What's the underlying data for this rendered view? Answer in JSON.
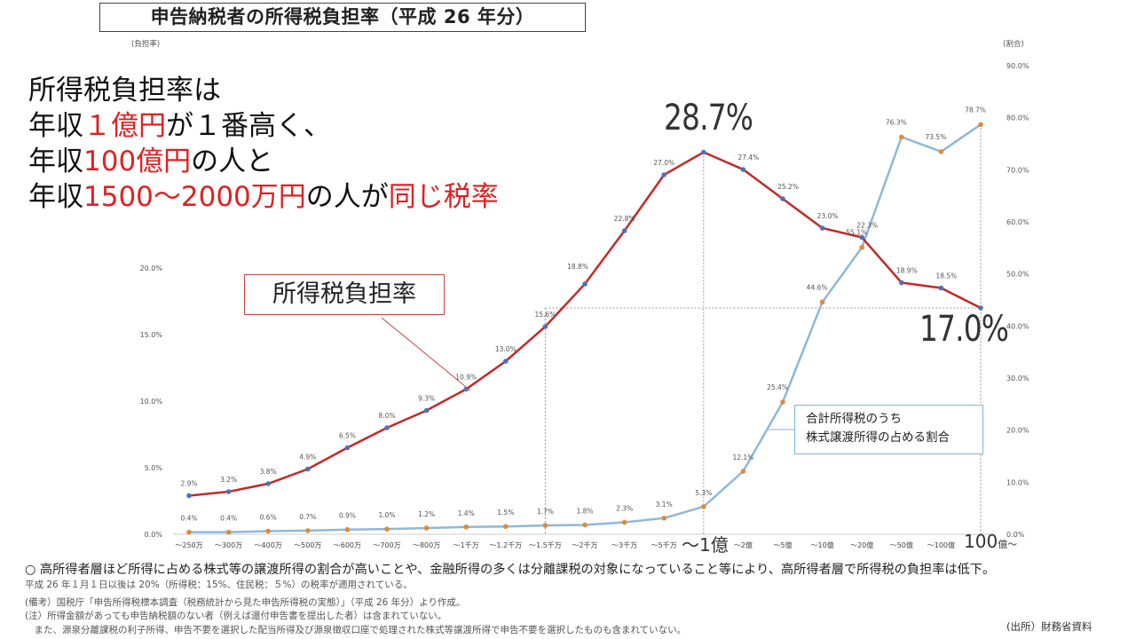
{
  "title": "申告納税者の所得税負担率（平成 26 年分）",
  "headline": {
    "line1": "所得税負担率は",
    "line2_a": "年収",
    "line2_b": "１億円",
    "line2_c": "が１番高く、",
    "line3_a": "年収",
    "line3_b": "100億円",
    "line3_c": "の人と",
    "line4_a": "年収",
    "line4_b": "1500～2000万円",
    "line4_c": "の人が",
    "line4_d": "同じ税率"
  },
  "accent_colors": {
    "headline_red": "#e02020",
    "burden_line": "#c62828",
    "share_line": "#8fb8d8",
    "share_marker": "#e08a3a",
    "burden_marker": "#4a74b8"
  },
  "callouts": {
    "burden": "所得税負担率",
    "share_line1": "合計所得税のうち",
    "share_line2": "株式譲渡所得の占める割合",
    "peak": "28.7%",
    "end": "17.0%",
    "x_1oku": "～1億",
    "x_100oku": "100",
    "x_100oku_suffix": "億～"
  },
  "notes": {
    "main": "○ 高所得者層ほど所得に占める株式等の譲渡所得の割合が高いことや、金融所得の多くは分離課税の対象になっていること等により、高所得者層で所得税の負担率は低下。",
    "sub1": "平成 26 年１月１日以後は 20%（所得税：15%、住民税：５%）の税率が適用されている。",
    "sub2": "(備考）国税庁「申告所得税標本調査（税務統計から見た申告所得税の実態）」（平成 26 年分）より作成。",
    "sub3": "(注）所得金額があっても申告納税額のない者（例えば還付申告書を提出した者）は含まれていない。",
    "sub4": "　また、源泉分離課税の利子所得、申告不要を選択した配当所得及び源泉徴収口座で処理された株式等譲渡所得で申告不要を選択したものも含まれていない。",
    "source": "(出所）財務省資料"
  },
  "chart_data": {
    "type": "line",
    "categories": [
      "～250万",
      "～300万",
      "～400万",
      "～500万",
      "～600万",
      "～700万",
      "～800万",
      "～1千万",
      "～1.2千万",
      "～1.5千万",
      "～2千万",
      "～3千万",
      "～5千万",
      "～1億",
      "～2億",
      "～5億",
      "～10億",
      "～20億",
      "～50億",
      "～100億",
      "100億～"
    ],
    "series": [
      {
        "name": "所得税負担率",
        "axis": "left",
        "values": [
          2.9,
          3.2,
          3.8,
          4.9,
          6.5,
          8.0,
          9.3,
          10.9,
          13.0,
          15.6,
          18.8,
          22.8,
          27.0,
          28.7,
          27.4,
          25.2,
          23.0,
          22.3,
          18.9,
          18.5,
          17.0
        ],
        "labels": [
          "2.9%",
          "3.2%",
          "3.8%",
          "4.9%",
          "6.5%",
          "8.0%",
          "9.3%",
          "10.9%",
          "13.0%",
          "15.6%",
          "18.8%",
          "22.8%",
          "27.0%",
          "",
          "27.4%",
          "25.2%",
          "23.0%",
          "22.3%",
          "18.9%",
          "18.5%",
          ""
        ]
      },
      {
        "name": "合計所得税のうち株式譲渡所得の占める割合",
        "axis": "right",
        "values": [
          0.4,
          0.4,
          0.6,
          0.7,
          0.9,
          1.0,
          1.2,
          1.4,
          1.5,
          1.7,
          1.8,
          2.3,
          3.1,
          5.3,
          12.1,
          25.4,
          44.6,
          55.1,
          76.3,
          73.5,
          78.7
        ],
        "labels": [
          "0.4%",
          "0.4%",
          "0.6%",
          "0.7%",
          "0.9%",
          "1.0%",
          "1.2%",
          "1.4%",
          "1.5%",
          "1.7%",
          "1.8%",
          "2.3%",
          "3.1%",
          "5.3%",
          "12.1%",
          "25.4%",
          "44.6%",
          "55.1%",
          "76.3%",
          "73.5%",
          "78.7%"
        ]
      }
    ],
    "x_tick_labels": [
      "～250万",
      "～300万",
      "～400万",
      "～500万",
      "～600万",
      "～700万",
      "～800万",
      "～1千万",
      "～1.2千万",
      "～1.5千万",
      "～2千万",
      "～3千万",
      "～5千万",
      "",
      "～2億",
      "～5億",
      "～10億",
      "～20億",
      "～50億",
      "～100億",
      ""
    ],
    "left_axis": {
      "label": "(負担率)",
      "ylim": [
        0,
        30
      ],
      "ticks": [
        0,
        5,
        10,
        15,
        20
      ],
      "tick_labels": [
        "0.0%",
        "5.0%",
        "10.0%",
        "15.0%",
        "20.0%"
      ]
    },
    "right_axis": {
      "label": "(割合)",
      "ylim": [
        0,
        90
      ],
      "ticks": [
        0,
        10,
        20,
        30,
        40,
        50,
        60,
        70,
        80,
        90
      ],
      "tick_labels": [
        "0.0%",
        "10.0%",
        "20.0%",
        "30.0%",
        "40.0%",
        "50.0%",
        "60.0%",
        "70.0%",
        "80.0%",
        "90.0%"
      ]
    },
    "grid": false,
    "reference_lines": [
      {
        "type": "vertical",
        "at_category": "～1億"
      },
      {
        "type": "vertical",
        "at_category": "～1.5千万"
      },
      {
        "type": "vertical",
        "at_category": "100億～"
      },
      {
        "type": "horizontal",
        "axis": "left",
        "value": 17.0
      }
    ]
  }
}
